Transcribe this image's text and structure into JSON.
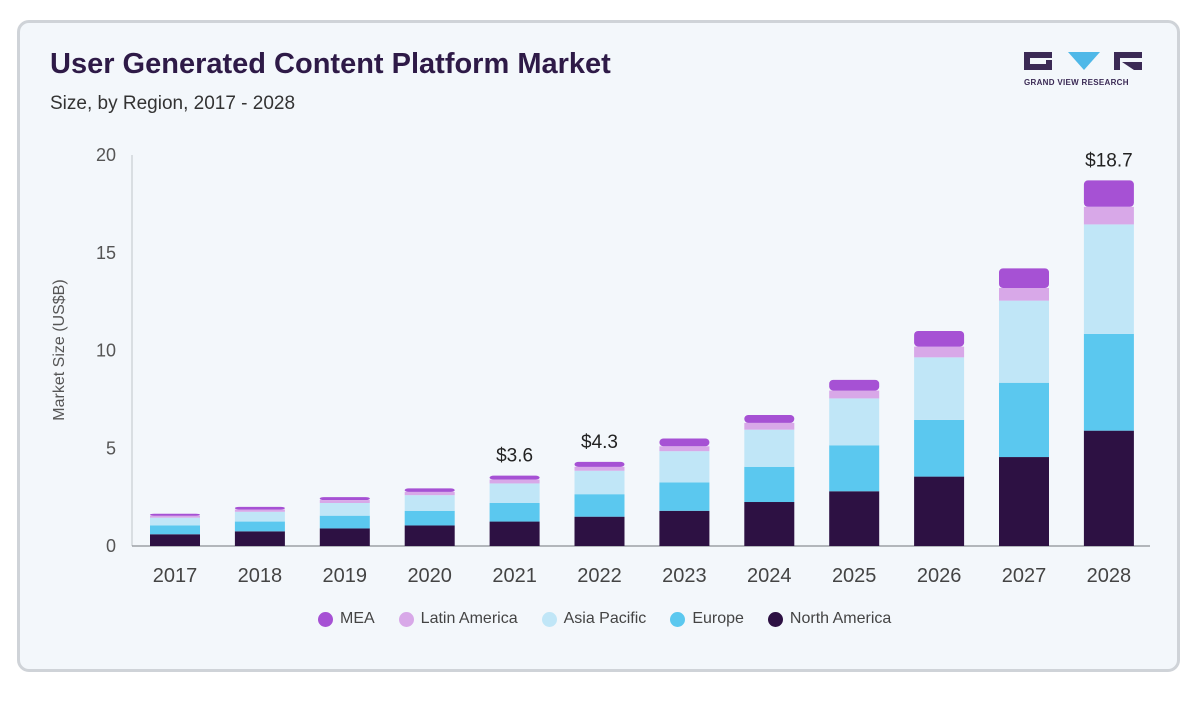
{
  "logo": {
    "name": "GRAND VIEW RESEARCH"
  },
  "chart_data": {
    "type": "bar",
    "stacked": true,
    "title": "User Generated Content Platform Market",
    "subtitle": "Size, by Region, 2017 - 2028",
    "xlabel": "",
    "ylabel": "Market Size (US$B)",
    "ylim": [
      0,
      20
    ],
    "yticks": [
      0,
      5,
      10,
      15,
      20
    ],
    "categories": [
      "2017",
      "2018",
      "2019",
      "2020",
      "2021",
      "2022",
      "2023",
      "2024",
      "2025",
      "2026",
      "2027",
      "2028"
    ],
    "series": [
      {
        "name": "North America",
        "color": "#2d1143",
        "values": [
          0.6,
          0.75,
          0.9,
          1.05,
          1.25,
          1.5,
          1.8,
          2.25,
          2.8,
          3.55,
          4.55,
          5.9
        ]
      },
      {
        "name": "Europe",
        "color": "#5bc8ef",
        "values": [
          0.45,
          0.5,
          0.65,
          0.75,
          0.95,
          1.15,
          1.45,
          1.8,
          2.35,
          2.9,
          3.8,
          4.95
        ]
      },
      {
        "name": "Asia Pacific",
        "color": "#c0e6f7",
        "values": [
          0.4,
          0.5,
          0.65,
          0.8,
          1.0,
          1.2,
          1.6,
          1.9,
          2.4,
          3.2,
          4.2,
          5.6
        ]
      },
      {
        "name": "Latin America",
        "color": "#d8a8e8",
        "values": [
          0.1,
          0.12,
          0.15,
          0.17,
          0.2,
          0.2,
          0.25,
          0.35,
          0.4,
          0.55,
          0.65,
          0.9
        ]
      },
      {
        "name": "MEA",
        "color": "#a651d4",
        "values": [
          0.1,
          0.13,
          0.15,
          0.18,
          0.2,
          0.25,
          0.4,
          0.4,
          0.55,
          0.8,
          1.0,
          1.35
        ]
      }
    ],
    "data_labels": [
      {
        "category": "2021",
        "text": "$3.6"
      },
      {
        "category": "2022",
        "text": "$4.3"
      },
      {
        "category": "2028",
        "text": "$18.7"
      }
    ],
    "legend_order": [
      "MEA",
      "Latin America",
      "Asia Pacific",
      "Europe",
      "North America"
    ],
    "legend_position": "bottom",
    "grid": false
  }
}
